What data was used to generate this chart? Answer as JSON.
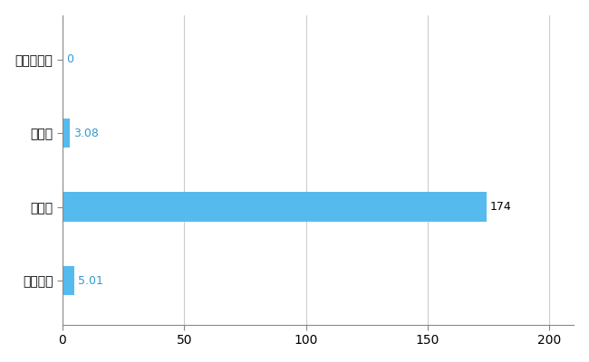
{
  "categories": [
    "会津若松市",
    "県平均",
    "県最大",
    "全国平均"
  ],
  "values": [
    0,
    3.08,
    174,
    5.01
  ],
  "bar_color": "#55BBEE",
  "value_labels": [
    "0",
    "3.08",
    "174",
    "5.01"
  ],
  "xlim": [
    0,
    210
  ],
  "xticks": [
    0,
    50,
    100,
    150,
    200
  ],
  "bar_height": 0.4,
  "grid_color": "#cccccc",
  "label_fontsize": 10,
  "tick_fontsize": 10,
  "value_label_color": "#000000",
  "value_label_fontsize": 9,
  "value_label_color_blue": "#3399CC"
}
